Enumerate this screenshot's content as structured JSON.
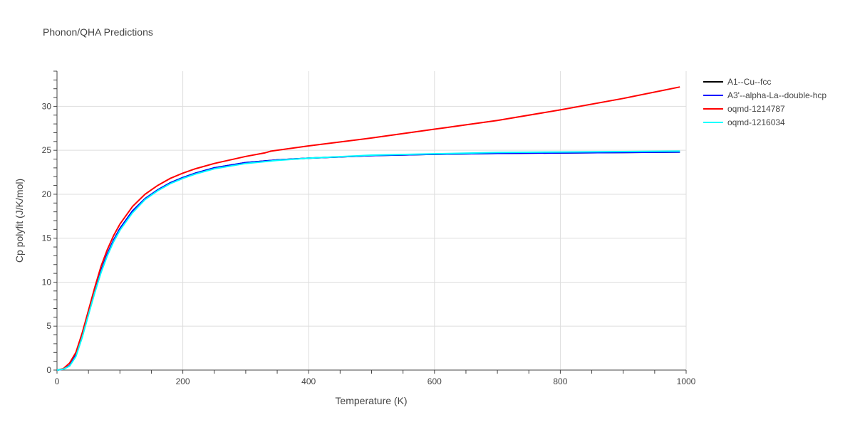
{
  "chart_data": {
    "type": "line",
    "title": "Phonon/QHA Predictions",
    "xlabel": "Temperature (K)",
    "ylabel": "Cp polyfit (J/K/mol)",
    "xlim": [
      0,
      1000
    ],
    "ylim": [
      0,
      34
    ],
    "x_ticks": [
      0,
      200,
      400,
      600,
      800,
      1000
    ],
    "y_ticks": [
      0,
      5,
      10,
      15,
      20,
      25,
      30
    ],
    "grid": true,
    "legend_position": "top-right outside",
    "series": [
      {
        "name": "A1--Cu--fcc",
        "color": "#000000",
        "x": [
          0,
          10,
          20,
          30,
          40,
          50,
          60,
          70,
          80,
          90,
          100,
          120,
          140,
          160,
          180,
          200,
          220,
          250,
          300,
          350,
          400,
          500,
          600,
          700,
          800,
          900,
          990
        ],
        "y": [
          0,
          0.1,
          0.5,
          1.7,
          3.9,
          6.5,
          9.0,
          11.3,
          13.2,
          14.8,
          16.1,
          18.1,
          19.5,
          20.5,
          21.3,
          21.9,
          22.4,
          23.0,
          23.6,
          23.9,
          24.1,
          24.4,
          24.55,
          24.65,
          24.7,
          24.75,
          24.8
        ]
      },
      {
        "name": "A3'--alpha-La--double-hcp",
        "color": "#0000ff",
        "x": [
          0,
          10,
          20,
          30,
          40,
          50,
          60,
          70,
          80,
          90,
          100,
          120,
          140,
          160,
          180,
          200,
          220,
          250,
          300,
          350,
          400,
          500,
          600,
          700,
          800,
          900,
          990
        ],
        "y": [
          0,
          0.1,
          0.5,
          1.7,
          3.9,
          6.5,
          9.0,
          11.3,
          13.2,
          14.8,
          16.1,
          18.1,
          19.5,
          20.5,
          21.3,
          21.9,
          22.4,
          23.0,
          23.6,
          23.9,
          24.1,
          24.4,
          24.55,
          24.65,
          24.7,
          24.75,
          24.8
        ]
      },
      {
        "name": "oqmd-1214787",
        "color": "#ff0000",
        "x": [
          0,
          10,
          20,
          30,
          40,
          50,
          60,
          70,
          80,
          90,
          100,
          120,
          140,
          160,
          180,
          200,
          220,
          250,
          300,
          330,
          340,
          400,
          500,
          600,
          620,
          650,
          700,
          800,
          900,
          990
        ],
        "y": [
          0,
          0.15,
          0.8,
          2.0,
          4.2,
          6.8,
          9.4,
          11.8,
          13.7,
          15.3,
          16.6,
          18.6,
          20.0,
          21.0,
          21.8,
          22.4,
          22.9,
          23.5,
          24.3,
          24.7,
          24.9,
          25.5,
          26.4,
          27.4,
          27.6,
          27.9,
          28.4,
          29.6,
          30.9,
          32.2
        ]
      },
      {
        "name": "oqmd-1216034",
        "color": "#00ffff",
        "x": [
          0,
          10,
          20,
          30,
          40,
          50,
          60,
          70,
          80,
          90,
          100,
          120,
          140,
          160,
          180,
          200,
          220,
          250,
          300,
          350,
          400,
          500,
          600,
          700,
          800,
          900,
          990
        ],
        "y": [
          0,
          0.1,
          0.45,
          1.55,
          3.7,
          6.3,
          8.8,
          11.1,
          13.0,
          14.6,
          15.9,
          17.9,
          19.4,
          20.4,
          21.2,
          21.8,
          22.3,
          22.9,
          23.5,
          23.85,
          24.1,
          24.45,
          24.6,
          24.75,
          24.8,
          24.85,
          24.9
        ]
      }
    ]
  }
}
